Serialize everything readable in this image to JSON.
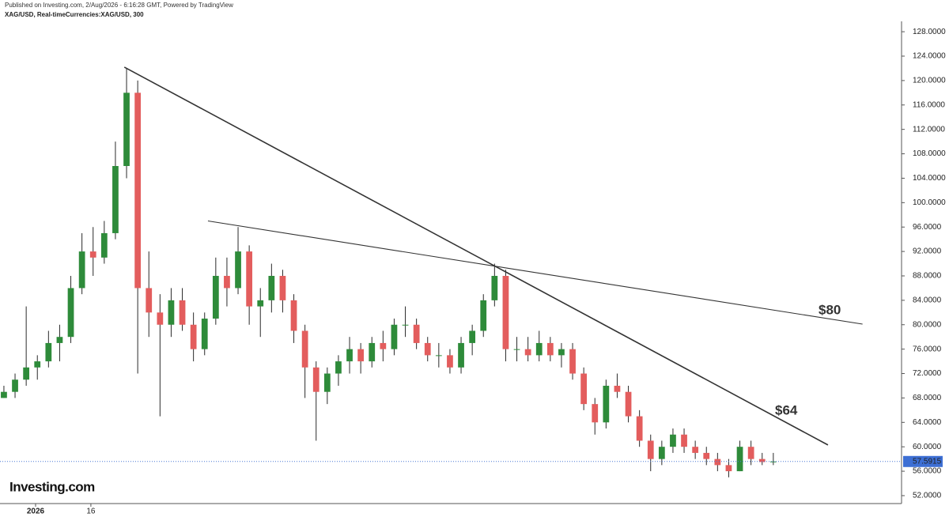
{
  "chart_data": {
    "type": "candlestick",
    "header": "Published on Investing.com, 2/Aug/2026 - 6:16:28 GMT, Powered by TradingView",
    "symbol": "XAG/USD, Real-timeCurrencies:XAG/USD, 300",
    "logo": "Investing.com",
    "up_color": "#2e8b3a",
    "down_color": "#e35d5d",
    "open": [
      68,
      69,
      71,
      73,
      74,
      77,
      78,
      86,
      92,
      91,
      95,
      106,
      118,
      86,
      82,
      80,
      84,
      80,
      76,
      81,
      88,
      86,
      92,
      83,
      84,
      88,
      84,
      79,
      73,
      69,
      72,
      74,
      76,
      74,
      77,
      76,
      80,
      80,
      77,
      75,
      75,
      73,
      77,
      79,
      84,
      88,
      76,
      76,
      75,
      77,
      75,
      76,
      72,
      67,
      64,
      70,
      69,
      65,
      61,
      58,
      60,
      62,
      60,
      59,
      58,
      57,
      56,
      60,
      58,
      57.5
    ],
    "high": [
      70,
      72,
      83,
      75,
      79,
      80,
      88,
      95,
      96,
      97,
      110,
      122,
      120,
      92,
      85,
      86,
      86,
      82,
      82,
      91,
      91,
      96,
      93,
      86,
      90,
      89,
      85,
      80,
      74,
      73,
      75,
      78,
      77,
      78,
      79,
      81,
      83,
      81,
      78,
      77,
      76,
      78,
      80,
      85,
      90,
      89,
      78,
      78,
      79,
      78,
      77,
      77,
      73,
      68,
      71,
      72,
      70,
      66,
      62,
      61,
      63,
      63,
      61,
      60,
      59,
      58,
      61,
      61,
      59,
      59
    ],
    "low": [
      68,
      68,
      70,
      71,
      73,
      74,
      77,
      85,
      88,
      90,
      94,
      104,
      72,
      78,
      65,
      78,
      79,
      74,
      75,
      80,
      83,
      85,
      80,
      78,
      82,
      82,
      77,
      68,
      61,
      67,
      70,
      72,
      72,
      73,
      74,
      75,
      78,
      76,
      74,
      73,
      72,
      72,
      75,
      78,
      83,
      74,
      74,
      74,
      74,
      74,
      73,
      71,
      66,
      62,
      63,
      68,
      64,
      60,
      56,
      57,
      59,
      59,
      58,
      57,
      56,
      55,
      56,
      57,
      57,
      57
    ],
    "close": [
      69,
      71,
      73,
      74,
      77,
      78,
      86,
      92,
      91,
      95,
      106,
      118,
      86,
      82,
      80,
      84,
      80,
      76,
      81,
      88,
      86,
      92,
      83,
      84,
      88,
      84,
      79,
      73,
      69,
      72,
      74,
      76,
      74,
      77,
      76,
      80,
      80,
      77,
      75,
      75,
      73,
      77,
      79,
      84,
      88,
      76,
      76,
      75,
      77,
      75,
      76,
      72,
      67,
      64,
      70,
      69,
      65,
      61,
      58,
      60,
      62,
      60,
      59,
      58,
      57,
      56,
      60,
      58,
      57.5,
      57.5915
    ],
    "trend_lines": [
      {
        "x": [
          10.8,
          73.9
        ],
        "y": [
          122.2,
          60.3
        ]
      },
      {
        "x": [
          18.3,
          77.0
        ],
        "y": [
          97.0,
          80.1
        ]
      }
    ],
    "annotations": [
      "$80",
      "$64"
    ],
    "last_price": 57.5915,
    "xlim": [
      -0.35,
      80.5
    ],
    "xticks": [
      {
        "value": 2.84,
        "label": "2026"
      },
      {
        "value": 7.8,
        "label": "16"
      }
    ],
    "ylim": [
      50.7,
      129.7
    ],
    "yticks": [
      {
        "value": 52,
        "label": "52.0000"
      },
      {
        "value": 56,
        "label": "56.0000"
      },
      {
        "value": 60,
        "label": "60.0000"
      },
      {
        "value": 64,
        "label": "64.0000"
      },
      {
        "value": 68,
        "label": "68.0000"
      },
      {
        "value": 72,
        "label": "72.0000"
      },
      {
        "value": 76,
        "label": "76.0000"
      },
      {
        "value": 80,
        "label": "80.0000"
      },
      {
        "value": 84,
        "label": "84.0000"
      },
      {
        "value": 88,
        "label": "88.0000"
      },
      {
        "value": 92,
        "label": "92.0000"
      },
      {
        "value": 96,
        "label": "96.0000"
      },
      {
        "value": 100,
        "label": "100.0000"
      },
      {
        "value": 104,
        "label": "104.0000"
      },
      {
        "value": 108,
        "label": "108.0000"
      },
      {
        "value": 112,
        "label": "112.0000"
      },
      {
        "value": 116,
        "label": "116.0000"
      },
      {
        "value": 120,
        "label": "120.0000"
      },
      {
        "value": 124,
        "label": "124.0000"
      },
      {
        "value": 128,
        "label": "128.0000"
      }
    ]
  }
}
